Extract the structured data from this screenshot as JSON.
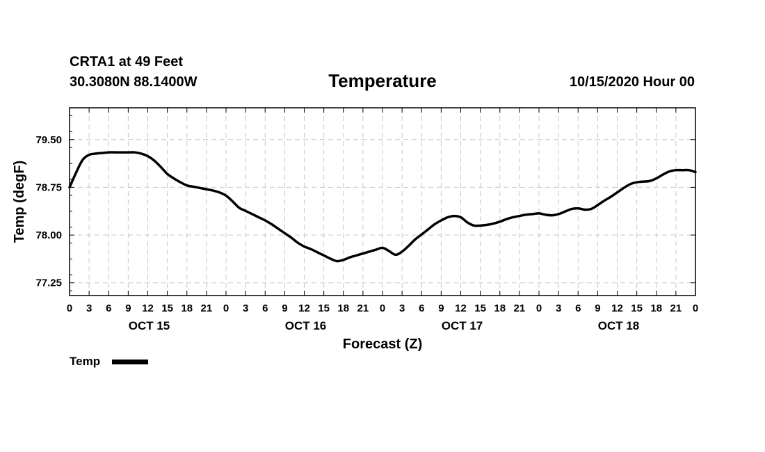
{
  "header": {
    "station": "CRTA1 at 49 Feet",
    "location": "30.3080N 88.1400W",
    "title": "Temperature",
    "datetime": "10/15/2020 Hour 00"
  },
  "chart_data": {
    "type": "line",
    "title": "Temperature",
    "xlabel": "Forecast (Z)",
    "ylabel": "Temp (degF)",
    "xunit": "hours since 10/15/2020 00Z",
    "xlim": [
      0,
      96
    ],
    "ylim": [
      77.05,
      80.0
    ],
    "yticks": [
      77.25,
      78.0,
      78.75,
      79.5
    ],
    "ytick_labels": [
      "77.25",
      "78.00",
      "78.75",
      "79.50"
    ],
    "xticks": [
      0,
      3,
      6,
      9,
      12,
      15,
      18,
      21,
      24,
      27,
      30,
      33,
      36,
      39,
      42,
      45,
      48,
      51,
      54,
      57,
      60,
      63,
      66,
      69,
      72,
      75,
      78,
      81,
      84,
      87,
      90,
      93,
      96
    ],
    "xtick_labels": [
      "0",
      "3",
      "6",
      "9",
      "12",
      "15",
      "18",
      "21",
      "0",
      "3",
      "6",
      "9",
      "12",
      "15",
      "18",
      "21",
      "0",
      "3",
      "6",
      "9",
      "12",
      "15",
      "18",
      "21",
      "0",
      "3",
      "6",
      "9",
      "12",
      "15",
      "18",
      "21",
      "0"
    ],
    "day_labels": [
      {
        "label": "OCT 15",
        "hour": 12
      },
      {
        "label": "OCT 16",
        "hour": 36
      },
      {
        "label": "OCT 17",
        "hour": 60
      },
      {
        "label": "OCT 18",
        "hour": 84
      }
    ],
    "grid": true,
    "legend_position": "bottom-left",
    "series": [
      {
        "name": "Temp",
        "color": "#000000",
        "x": [
          0,
          1,
          2,
          3,
          4,
          5,
          6,
          7,
          8,
          9,
          10,
          11,
          12,
          13,
          14,
          15,
          16,
          17,
          18,
          19,
          20,
          21,
          22,
          23,
          24,
          25,
          26,
          27,
          28,
          29,
          30,
          31,
          32,
          33,
          34,
          35,
          36,
          37,
          38,
          39,
          40,
          41,
          42,
          43,
          44,
          45,
          46,
          47,
          48,
          49,
          50,
          51,
          52,
          53,
          54,
          55,
          56,
          57,
          58,
          59,
          60,
          61,
          62,
          63,
          64,
          65,
          66,
          67,
          68,
          69,
          70,
          71,
          72,
          73,
          74,
          75,
          76,
          77,
          78,
          79,
          80,
          81,
          82,
          83,
          84,
          85,
          86,
          87,
          88,
          89,
          90,
          91,
          92,
          93,
          94,
          95,
          96
        ],
        "y": [
          78.75,
          78.98,
          79.18,
          79.26,
          79.28,
          79.29,
          79.3,
          79.3,
          79.3,
          79.3,
          79.3,
          79.28,
          79.24,
          79.17,
          79.07,
          78.96,
          78.89,
          78.83,
          78.78,
          78.76,
          78.74,
          78.72,
          78.7,
          78.67,
          78.62,
          78.53,
          78.43,
          78.38,
          78.33,
          78.28,
          78.23,
          78.17,
          78.1,
          78.03,
          77.96,
          77.88,
          77.82,
          77.78,
          77.73,
          77.68,
          77.63,
          77.59,
          77.61,
          77.65,
          77.68,
          77.71,
          77.74,
          77.77,
          77.8,
          77.75,
          77.69,
          77.74,
          77.83,
          77.93,
          78.01,
          78.09,
          78.17,
          78.23,
          78.28,
          78.3,
          78.28,
          78.2,
          78.15,
          78.15,
          78.16,
          78.18,
          78.21,
          78.25,
          78.28,
          78.3,
          78.32,
          78.33,
          78.34,
          78.32,
          78.31,
          78.33,
          78.37,
          78.41,
          78.42,
          78.4,
          78.41,
          78.47,
          78.54,
          78.6,
          78.67,
          78.74,
          78.8,
          78.83,
          78.84,
          78.85,
          78.89,
          78.95,
          79.0,
          79.02,
          79.02,
          79.02,
          78.99
        ]
      }
    ]
  }
}
